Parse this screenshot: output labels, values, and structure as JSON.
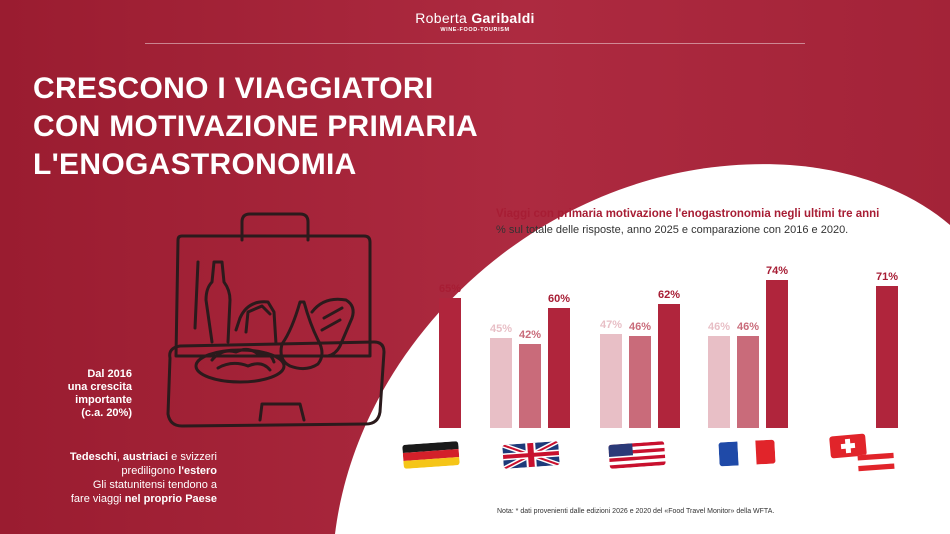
{
  "brand": {
    "name_light": "Roberta",
    "name_bold": "Garibaldi",
    "tagline": "WINE-FOOD-TOURISM"
  },
  "title": {
    "line1": "CRESCONO I VIAGGIATORI",
    "line2": "CON MOTIVAZIONE PRIMARIA",
    "line3": "L'ENOGASTRONOMIA"
  },
  "side": {
    "growth_line1": "Dal 2016",
    "growth_line2": "una crescita",
    "growth_line3": "importante",
    "growth_line4": "(c.a. 20%)",
    "t1_bold": "Tedeschi",
    "t1_sep": ", ",
    "t1_bold2": "austriaci",
    "t1_rest": " e svizzeri",
    "t2": "prediligono ",
    "t2_bold": "l'estero",
    "t3": "Gli statunitensi tendono a",
    "t4": "fare viaggi ",
    "t4_bold": "nel proprio Paese"
  },
  "chart_data": {
    "type": "bar",
    "title": "Viaggi con primaria motivazione l'enogastronomia negli ultimi tre anni",
    "subtitle": "% sul totale delle risposte, anno 2025 e comparazione con 2016 e 2020.",
    "categories": [
      "Germania",
      "Regno Unito",
      "Stati Uniti",
      "Francia",
      "Svizzera/Austria"
    ],
    "series": [
      {
        "values": [
          null,
          45,
          47,
          46,
          null
        ],
        "color": "#e8bfc6"
      },
      {
        "values": [
          null,
          42,
          46,
          46,
          null
        ],
        "color": "#c96b7a"
      },
      {
        "values": [
          65,
          60,
          62,
          74,
          71
        ],
        "color": "#b0253c"
      }
    ],
    "value_suffix": "%",
    "ylim": [
      0,
      100
    ]
  },
  "flags": [
    "germany-flag",
    "uk-flag",
    "usa-flag",
    "france-flag",
    "switzerland-flag",
    "austria-flag"
  ],
  "note": "Nota: * dati provenienti dalle edizioni 2026 e 2020 del «Food Travel Monitor» della WFTA.",
  "colors": {
    "background": "#9e1f33",
    "panel": "#ffffff",
    "accent": "#a71d34"
  }
}
